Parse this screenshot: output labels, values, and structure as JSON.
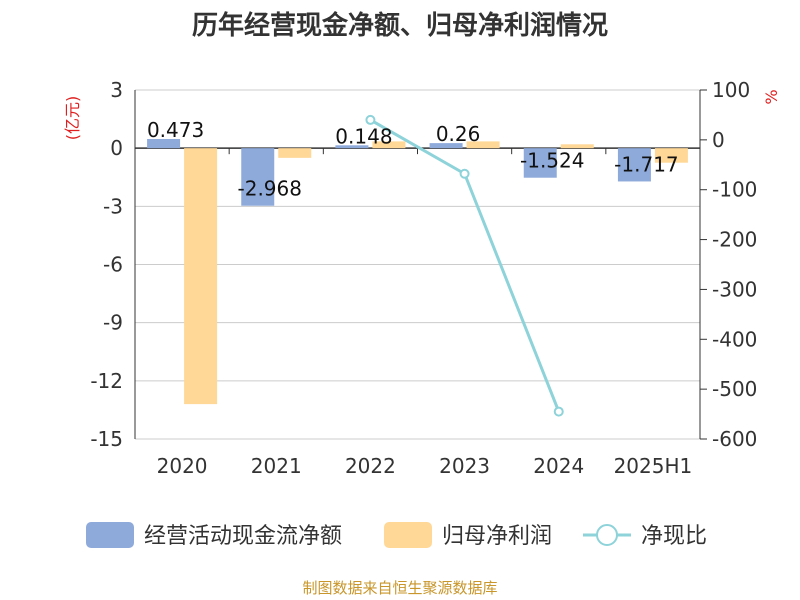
{
  "chart_data": {
    "type": "bar",
    "title": "历年经营现金净额、归母净利润情况",
    "categories": [
      "2020",
      "2021",
      "2022",
      "2023",
      "2024",
      "2025H1"
    ],
    "series": [
      {
        "name": "经营活动现金流净额",
        "type": "bar",
        "axis": "left",
        "color": "#8eaadb",
        "values": [
          0.473,
          -2.968,
          0.148,
          0.26,
          -1.524,
          -1.717
        ],
        "labels": [
          "0.473",
          "-2.968",
          "0.148",
          "0.26",
          "-1.524",
          "-1.717"
        ]
      },
      {
        "name": "归母净利润",
        "type": "bar",
        "axis": "left",
        "color": "#ffd898",
        "values": [
          -13.2,
          -0.5,
          0.35,
          0.35,
          0.2,
          -0.75
        ]
      },
      {
        "name": "净现比",
        "type": "line",
        "axis": "right",
        "color": "#8dd3d9",
        "values": [
          null,
          null,
          40,
          -68,
          null,
          null
        ]
      }
    ],
    "y_left": {
      "unit": "(亿元)",
      "min": -15,
      "max": 3,
      "ticks": [
        3,
        0,
        -3,
        -6,
        -9,
        -12,
        -15
      ],
      "tick_labels": [
        "3",
        "0",
        "-3",
        "-6",
        "-9",
        "-12",
        "-15"
      ]
    },
    "y_right": {
      "unit": "%",
      "min": -600,
      "max": 100,
      "ticks": [
        100,
        0,
        -100,
        -200,
        -300,
        -400,
        -500,
        -600
      ],
      "tick_labels": [
        "100",
        "0",
        "-100",
        "-200",
        "-300",
        "-400",
        "-500",
        "-600"
      ]
    },
    "extra_line_points": [
      {
        "category": "2024",
        "value": -545
      }
    ],
    "grid": true,
    "legend": "bottom",
    "source": "制图数据来自恒生聚源数据库"
  }
}
